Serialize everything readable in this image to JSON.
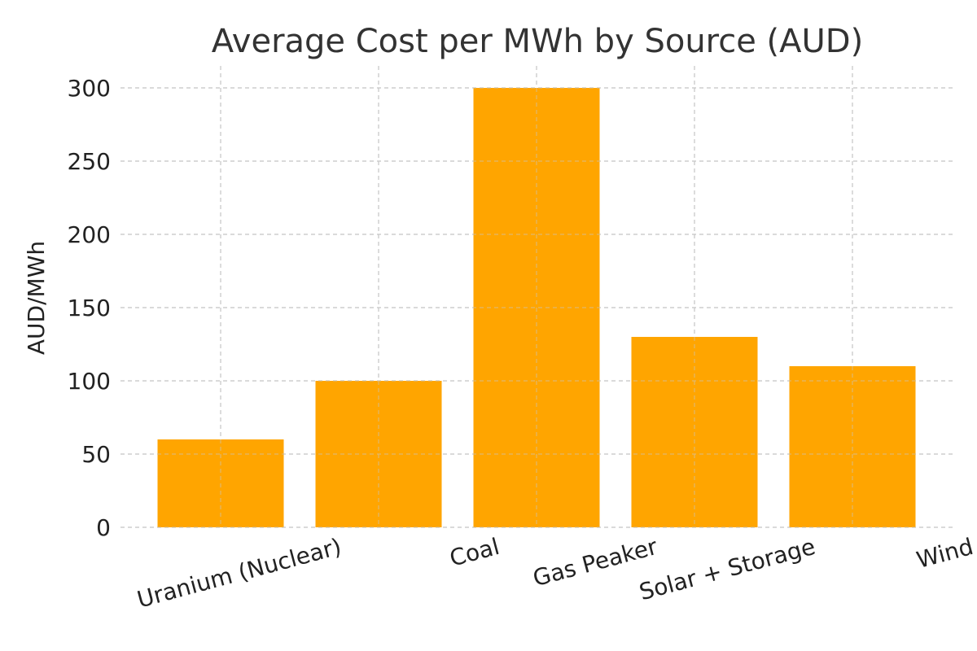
{
  "chart_data": {
    "type": "bar",
    "title": "Average Cost per MWh by Source (AUD)",
    "xlabel": "",
    "ylabel": "AUD/MWh",
    "categories": [
      "Uranium (Nuclear)",
      "Coal",
      "Gas Peaker",
      "Solar + Storage",
      "Wind"
    ],
    "values": [
      60,
      100,
      300,
      130,
      110
    ],
    "ylim": [
      0,
      315
    ],
    "yticks": [
      0,
      50,
      100,
      150,
      200,
      250,
      300
    ],
    "grid": true,
    "bar_color": "#FFA500"
  }
}
